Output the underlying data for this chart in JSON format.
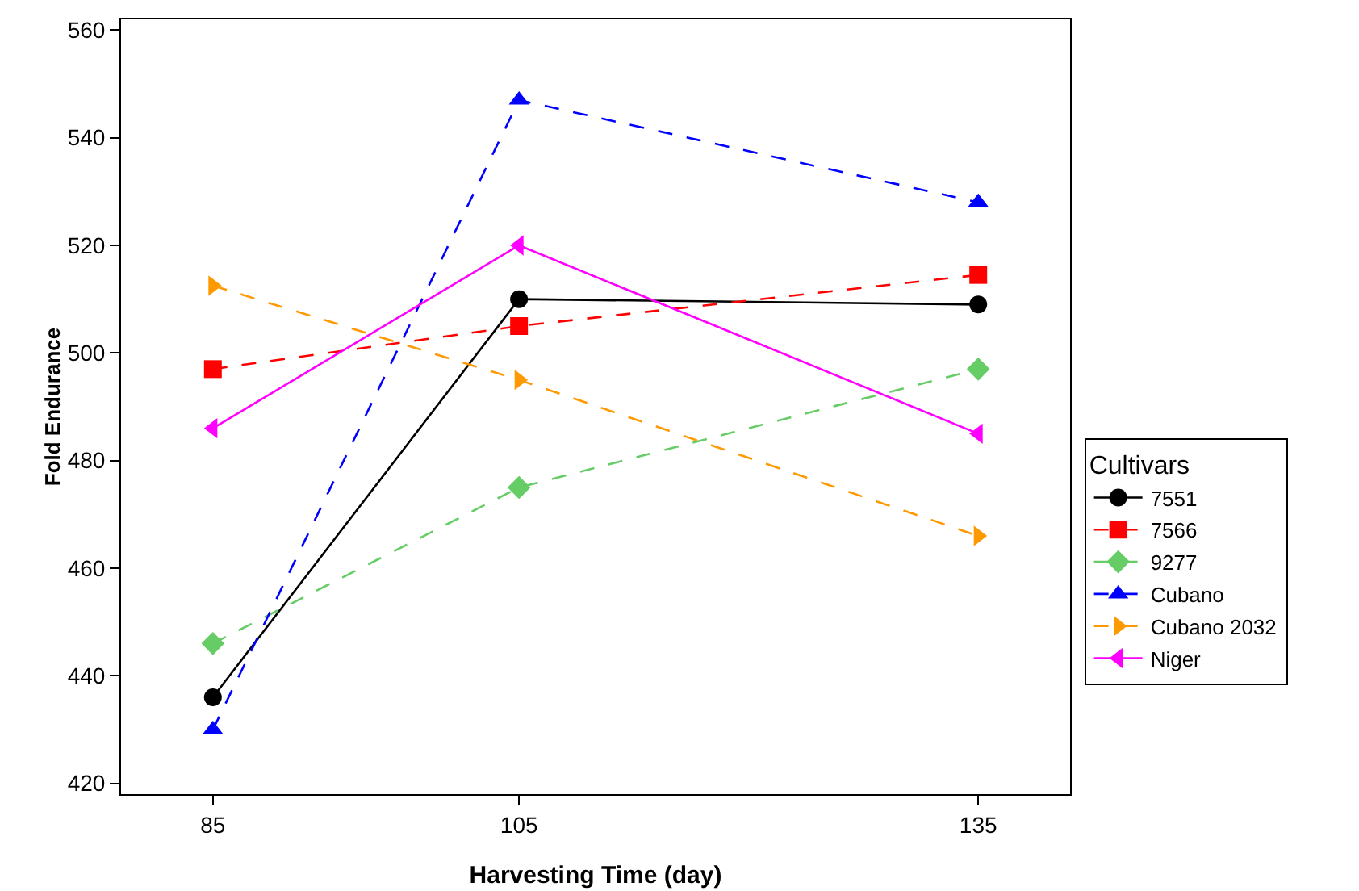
{
  "chart_data": {
    "type": "line",
    "xlabel": "Harvesting Time (day)",
    "ylabel": "Fold Endurance",
    "legend_title": "Cultivars",
    "legend": "right",
    "grid": false,
    "x": [
      85,
      105,
      135
    ],
    "xlim": [
      79,
      141
    ],
    "xticks": [
      85,
      105,
      135
    ],
    "ylim": [
      418,
      562
    ],
    "yticks": [
      420,
      440,
      460,
      480,
      500,
      520,
      540,
      560
    ],
    "series": [
      {
        "name": "7551",
        "color": "#000000",
        "marker": "circle",
        "line_style": "solid",
        "values": [
          436,
          510,
          509
        ]
      },
      {
        "name": "7566",
        "color": "#ff0000",
        "marker": "square",
        "line_style": "dashed",
        "values": [
          497,
          505,
          514.5
        ]
      },
      {
        "name": "9277",
        "color": "#66cc66",
        "marker": "diamond",
        "line_style": "dashed",
        "values": [
          446,
          475,
          497
        ]
      },
      {
        "name": "Cubano",
        "color": "#0000ff",
        "marker": "triangle",
        "line_style": "dashed",
        "values": [
          430,
          547,
          528
        ]
      },
      {
        "name": "Cubano 2032",
        "color": "#ff9900",
        "marker": "triangle-right",
        "line_style": "dashed",
        "values": [
          512.5,
          495,
          466
        ]
      },
      {
        "name": "Niger",
        "color": "#ff00ff",
        "marker": "triangle-left",
        "line_style": "solid",
        "values": [
          486,
          520,
          485
        ]
      }
    ]
  }
}
